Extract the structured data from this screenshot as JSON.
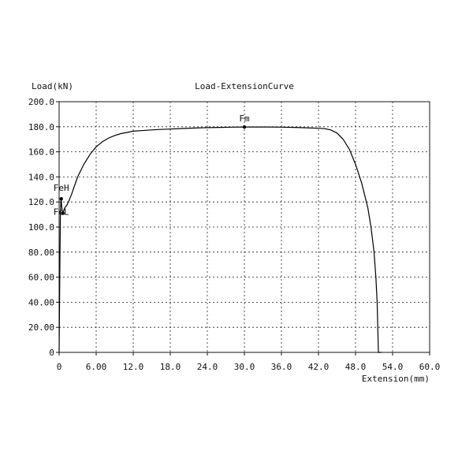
{
  "chart_data": {
    "type": "line",
    "title": "Load-ExtensionCurve",
    "ylabel": "Load(kN)",
    "xlabel": "Extension(mm)",
    "xlim": [
      0,
      60
    ],
    "ylim": [
      0,
      200
    ],
    "grid": true,
    "x_tick_labels": [
      "0",
      "6.00",
      "12.0",
      "18.0",
      "24.0",
      "30.0",
      "36.0",
      "42.0",
      "48.0",
      "54.0",
      "60.0"
    ],
    "y_tick_labels": [
      "0",
      "20.00",
      "40.00",
      "60.00",
      "80.00",
      "100.0",
      "120.0",
      "140.0",
      "160.0",
      "180.0",
      "200.0"
    ],
    "series": [
      {
        "x": [
          0,
          0.1,
          0.2,
          0.3,
          0.35,
          0.4,
          0.5,
          0.6,
          0.8,
          1.0,
          1.2,
          1.5,
          2.0,
          2.5,
          3,
          4,
          5,
          6,
          7,
          8,
          9,
          10,
          11,
          12,
          14,
          16,
          18,
          20,
          22,
          24,
          26,
          28,
          30,
          32,
          34,
          36,
          38,
          40,
          42,
          43,
          44,
          45,
          46,
          47,
          48,
          49,
          50,
          50.5,
          51,
          51.3,
          51.5,
          51.6,
          51.7,
          51.8,
          52.2
        ],
        "y": [
          0,
          60,
          112,
          121,
          122.5,
          118,
          113,
          111,
          114,
          116,
          117,
          120,
          126,
          133,
          140,
          150,
          158,
          164,
          168,
          171,
          173,
          174.5,
          175.5,
          176.5,
          177.2,
          177.8,
          178.2,
          178.6,
          179,
          179.3,
          179.5,
          179.7,
          179.8,
          179.8,
          179.8,
          179.7,
          179.5,
          179.2,
          178.8,
          178.5,
          177.5,
          175,
          170,
          162,
          150,
          135,
          115,
          100,
          80,
          60,
          40,
          20,
          0,
          0,
          0
        ]
      }
    ],
    "annotations": [
      {
        "text": "FeH",
        "x": 0.35,
        "y": 122.5
      },
      {
        "text": "FeL",
        "x": 0.6,
        "y": 111
      },
      {
        "text": "Fm",
        "x": 30,
        "y": 179.8
      }
    ]
  }
}
